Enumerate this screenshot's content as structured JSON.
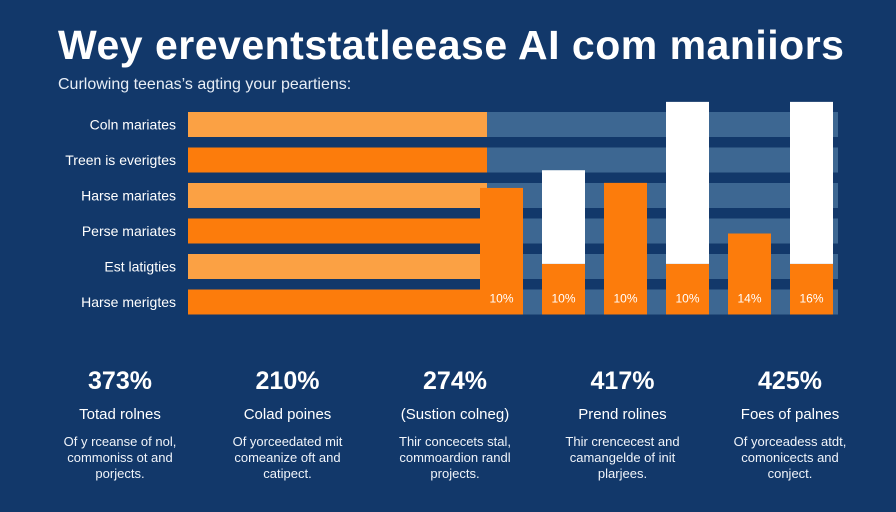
{
  "header": {
    "title": "Wey ereventstatleease AI com maniiors",
    "subtitle": "Curlowing teenas’s agting your peartiens:"
  },
  "colors": {
    "background": "#12386a",
    "band": "#3d6792",
    "orange": "#fc7c0c",
    "orange_light": "#fba144",
    "white": "#ffffff"
  },
  "chart_data": [
    {
      "type": "bar",
      "orientation": "horizontal",
      "categories": [
        "Coln mariates",
        "Treen is everigtes",
        "Harse mariates",
        "Perse mariates",
        "Est latigties",
        "Harse merigtes"
      ],
      "values": [
        46,
        46,
        46,
        46,
        51,
        46
      ],
      "xlim": [
        0,
        100
      ]
    },
    {
      "type": "bar",
      "orientation": "vertical",
      "series": [
        {
          "values": [
            50,
            0,
            52,
            0,
            32,
            0
          ]
        },
        {
          "values": [
            0,
            37,
            0,
            64,
            0,
            64
          ]
        }
      ],
      "data_labels": [
        "10%",
        "10%",
        "10%",
        "10%",
        "14%",
        "16%"
      ],
      "ylim": [
        0,
        80
      ]
    }
  ],
  "stats": [
    {
      "value": "373%",
      "label": "Totad rolnes",
      "desc_lines": [
        "Of y rceanse of nol,",
        "commoniss ot and",
        "porjects."
      ]
    },
    {
      "value": "210%",
      "label": "Colad poines",
      "desc_lines": [
        "Of yorceedated mit",
        "comeanize oft and",
        "catipect."
      ]
    },
    {
      "value": "274%",
      "label": "(Sustion colneg)",
      "desc_lines": [
        "Thir concecets stal,",
        "commoardion randl",
        "projects."
      ]
    },
    {
      "value": "417%",
      "label": "Prend rolines",
      "desc_lines": [
        "Thir crencecest and",
        "camangelde of init",
        "plarjees."
      ]
    },
    {
      "value": "425%",
      "label": "Foes of palnes",
      "desc_lines": [
        "Of yorceadess atdt,",
        "comonicects and",
        "conject."
      ]
    }
  ]
}
